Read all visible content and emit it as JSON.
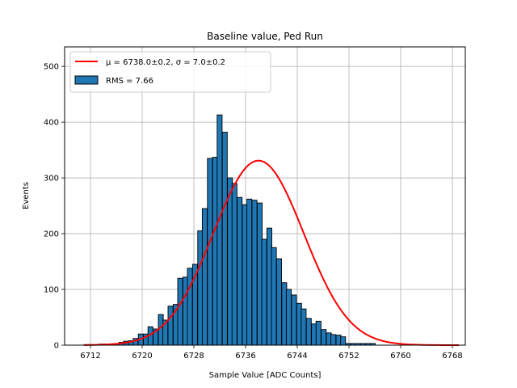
{
  "chart_data": {
    "type": "bar",
    "title": "Baseline value, Ped Run",
    "xlabel": "Sample Value [ADC Counts]",
    "ylabel": "Events",
    "xlim": [
      6708,
      6770
    ],
    "ylim": [
      0,
      535
    ],
    "xticks": [
      6712,
      6720,
      6728,
      6736,
      6744,
      6752,
      6760,
      6768
    ],
    "yticks": [
      0,
      100,
      200,
      300,
      400,
      500
    ],
    "grid": true,
    "legend_position": "top-left",
    "series": [
      {
        "name": "RMS = 7.66",
        "kind": "histogram",
        "color": "#1f77b4",
        "edgecolor": "#000000",
        "bin_width": 0.766,
        "x": [
          6711.0,
          6711.8,
          6712.5,
          6713.3,
          6714.1,
          6714.8,
          6715.6,
          6716.4,
          6717.1,
          6717.9,
          6718.6,
          6719.4,
          6720.2,
          6720.9,
          6721.7,
          6722.5,
          6723.2,
          6724.0,
          6724.8,
          6725.5,
          6726.3,
          6727.0,
          6727.8,
          6728.6,
          6729.3,
          6730.1,
          6730.9,
          6731.6,
          6732.4,
          6733.2,
          6733.9,
          6734.7,
          6735.5,
          6736.2,
          6737.0,
          6737.8,
          6738.5,
          6739.3,
          6740.0,
          6740.8,
          6741.6,
          6742.3,
          6743.1,
          6743.9,
          6744.6,
          6745.4,
          6746.2,
          6746.9,
          6747.7,
          6748.5,
          6749.2,
          6750.0,
          6750.7,
          6751.5,
          6752.3,
          6753.0,
          6753.8,
          6754.6,
          6755.3,
          6756.1,
          6756.9,
          6757.6,
          6758.4,
          6759.2,
          6759.9,
          6760.7,
          6761.4,
          6762.2,
          6763.0,
          6763.7,
          6764.5,
          6765.3,
          6766.0,
          6766.8,
          6767.6
        ],
        "values": [
          1,
          1,
          1,
          2,
          2,
          2,
          3,
          5,
          7,
          8,
          12,
          20,
          20,
          33,
          29,
          55,
          45,
          70,
          73,
          120,
          122,
          138,
          145,
          205,
          245,
          335,
          337,
          413,
          382,
          300,
          290,
          265,
          252,
          262,
          260,
          255,
          190,
          210,
          175,
          155,
          112,
          100,
          90,
          75,
          65,
          48,
          38,
          43,
          28,
          22,
          19,
          18,
          15,
          3,
          3,
          3,
          3,
          3,
          3,
          0,
          0,
          0,
          0,
          0,
          0,
          0,
          0,
          0,
          0,
          0,
          0,
          0,
          0,
          0,
          0
        ]
      },
      {
        "name": "μ = 6738.0±0.2, σ = 7.0±0.2",
        "kind": "gaussian-fit",
        "color": "#ff0000",
        "mu": 6738.0,
        "sigma": 7.0,
        "amplitude": 331,
        "x_range": [
          6711.0,
          6769.0
        ]
      }
    ]
  }
}
